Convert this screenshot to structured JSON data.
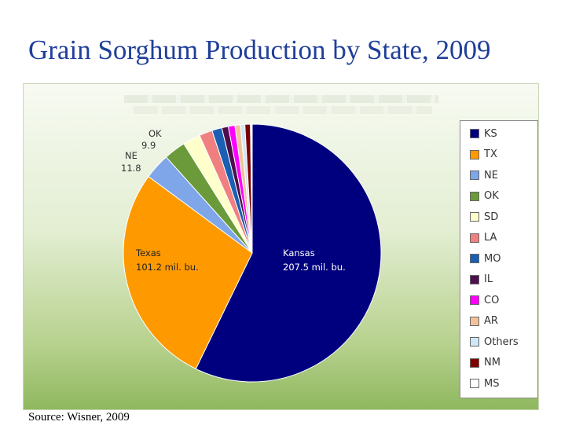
{
  "slide": {
    "title": "Grain Sorghum Production by State, 2009",
    "source": "Source: Wisner, 2009"
  },
  "chart_data": {
    "type": "pie",
    "unit": "mil. bu.",
    "slices": [
      {
        "key": "KS",
        "value": 207.5,
        "color": "#00007f"
      },
      {
        "key": "TX",
        "value": 101.2,
        "color": "#ff9900"
      },
      {
        "key": "NE",
        "value": 11.8,
        "color": "#7ea6e8"
      },
      {
        "key": "OK",
        "value": 9.9,
        "color": "#6a9a3a"
      },
      {
        "key": "SD",
        "value": 8.0,
        "color": "#ffffcc"
      },
      {
        "key": "LA",
        "value": 6.0,
        "color": "#f08080"
      },
      {
        "key": "MO",
        "value": 4.5,
        "color": "#1a5fb4"
      },
      {
        "key": "IL",
        "value": 3.0,
        "color": "#4d0f4d"
      },
      {
        "key": "CO",
        "value": 3.0,
        "color": "#ff00ff"
      },
      {
        "key": "AR",
        "value": 2.5,
        "color": "#f2c29c"
      },
      {
        "key": "Others",
        "value": 2.0,
        "color": "#cfe8f6"
      },
      {
        "key": "NM",
        "value": 2.5,
        "color": "#7f0000"
      },
      {
        "key": "MS",
        "value": 0.8,
        "color": "#ffffff"
      }
    ],
    "slice_labels": {
      "kansas_name": "Kansas",
      "kansas_value": "207.5 mil. bu.",
      "texas_name": "Texas",
      "texas_value": "101.2 mil. bu.",
      "ne_name": "NE",
      "ne_value": "11.8",
      "ok_name": "OK",
      "ok_value": "9.9"
    },
    "legend": [
      "KS",
      "TX",
      "NE",
      "OK",
      "SD",
      "LA",
      "MO",
      "IL",
      "CO",
      "AR",
      "Others",
      "NM",
      "MS"
    ],
    "legend_position": "right"
  }
}
